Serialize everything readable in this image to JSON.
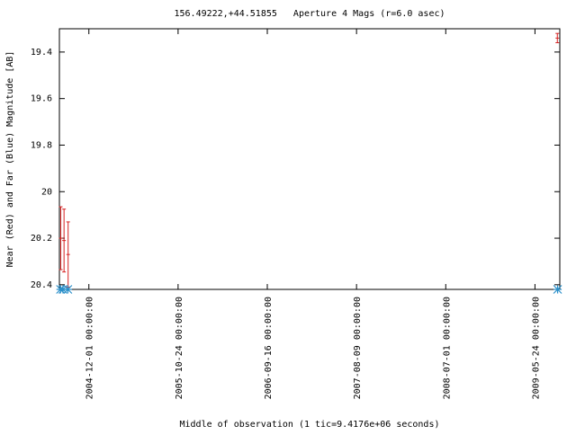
{
  "chart_data": {
    "type": "errorbar",
    "title": "156.49222,+44.51855   Aperture 4 Mags (r=6.0 asec)",
    "x_label": "Middle of observation (1 tic=9.4176e+06 seconds)",
    "y_label": "Near (Red) and Far (Blue) Magnitude [AB]",
    "xlim": [
      "2004-08-15 00:00:00",
      "2009-08-23 00:00:00"
    ],
    "xticks": [
      "2004-12-01 00:00:00",
      "2005-10-24 00:00:00",
      "2006-09-16 00:00:00",
      "2007-08-09 00:00:00",
      "2008-07-01 00:00:00",
      "2009-05-24 00:00:00"
    ],
    "ylim": [
      20.42,
      19.3
    ],
    "yticks": [
      19.4,
      19.6,
      19.8,
      20,
      20.2,
      20.4
    ],
    "series": [
      {
        "name": "Near",
        "color": "#d62020",
        "marker": "errorbar",
        "x": [
          "2004-08-20 00:00:00",
          "2004-09-01 00:00:00",
          "2004-09-16 00:00:00",
          "2009-08-14 00:00:00"
        ],
        "values": [
          20.2,
          20.21,
          20.27,
          19.34
        ],
        "errors": [
          0.135,
          0.135,
          0.14,
          0.02
        ]
      },
      {
        "name": "Far",
        "color": "#2a8fc9",
        "marker": "star",
        "x": [
          "2004-08-19 00:00:00",
          "2004-08-28 00:00:00",
          "2004-09-15 00:00:00",
          "2009-08-15 00:00:00"
        ],
        "values": [
          20.42,
          20.42,
          20.42,
          20.42
        ]
      }
    ]
  }
}
